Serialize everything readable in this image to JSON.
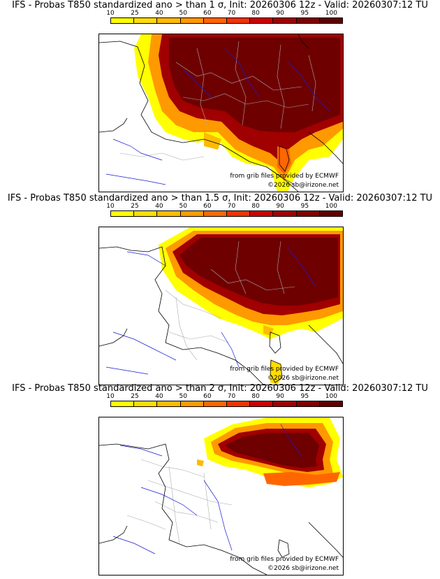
{
  "panels": [
    {
      "title": "IFS - Probas T850  standardized ano > than 1 σ, Init: 20260306 12z - Valid: 20260307:12 TU",
      "credit_grib": "from grib files provided by ECMWF",
      "credit_site": "©2026 sb@irizone.net",
      "threshold_sigma": 1
    },
    {
      "title": "IFS - Probas T850  standardized ano > than 1.5 σ, Init: 20260306 12z - Valid: 20260307:12 TU",
      "credit_grib": "from grib files provided by ECMWF",
      "credit_site": "©2026 sb@irizone.net",
      "threshold_sigma": 1.5
    },
    {
      "title": "IFS - Probas T850  standardized ano > than 2 σ, Init: 20260306 12z - Valid: 20260307:12 TU",
      "credit_grib": "from grib files provided by ECMWF",
      "credit_site": "©2026 sb@irizone.net",
      "threshold_sigma": 2
    }
  ],
  "color_scale": {
    "labels": [
      "10",
      "25",
      "40",
      "50",
      "60",
      "70",
      "80",
      "90",
      "95",
      "100"
    ],
    "colors": [
      "#ffff00",
      "#ffdd00",
      "#ffbb00",
      "#ff9900",
      "#ff6600",
      "#ee3300",
      "#cc0000",
      "#a00000",
      "#800000",
      "#600000"
    ]
  },
  "map_colors": {
    "coast": "#000000",
    "borders": "#999999",
    "rivers": "#1a1ad6"
  }
}
